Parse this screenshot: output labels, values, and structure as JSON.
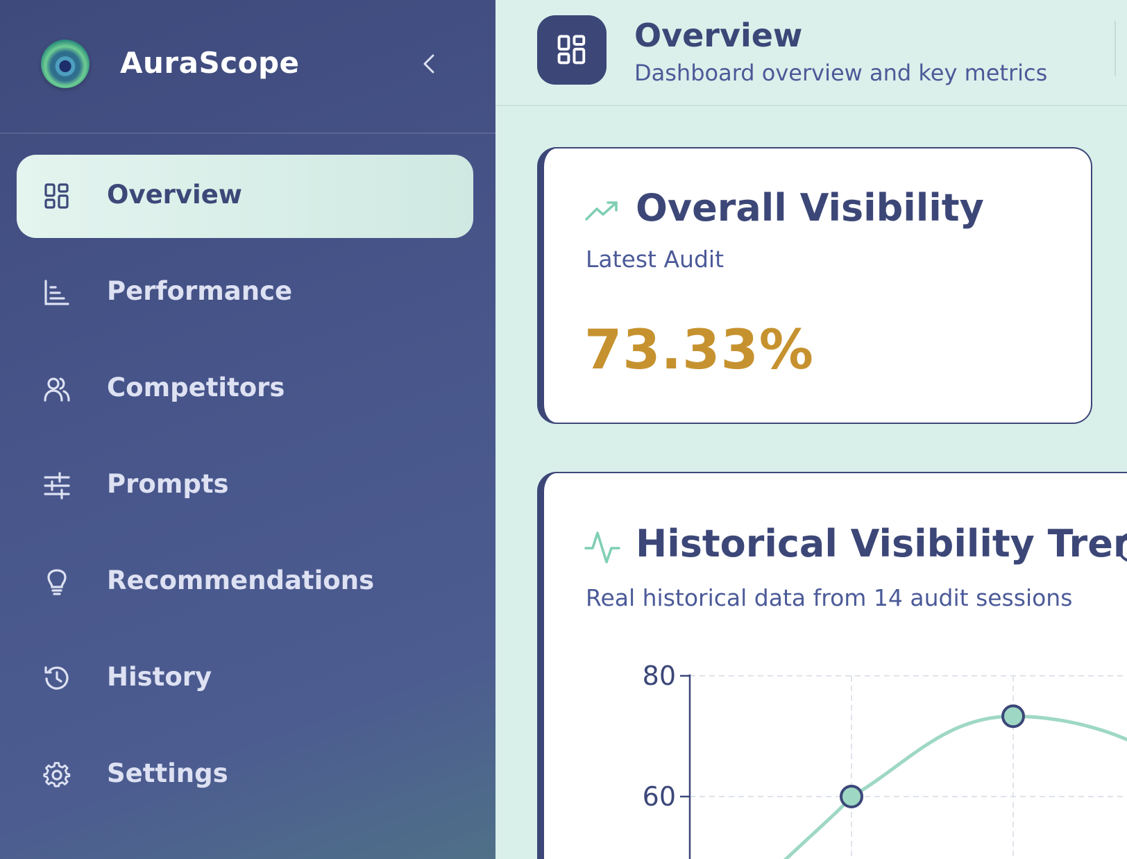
{
  "sidebar": {
    "brand": "AuraScope",
    "items": [
      {
        "label": "Overview",
        "icon": "grid-icon",
        "active": true
      },
      {
        "label": "Performance",
        "icon": "bar-chart-icon",
        "active": false
      },
      {
        "label": "Competitors",
        "icon": "users-icon",
        "active": false
      },
      {
        "label": "Prompts",
        "icon": "sliders-icon",
        "active": false
      },
      {
        "label": "Recommendations",
        "icon": "lightbulb-icon",
        "active": false
      },
      {
        "label": "History",
        "icon": "history-icon",
        "active": false
      },
      {
        "label": "Settings",
        "icon": "gear-icon",
        "active": false
      }
    ]
  },
  "header": {
    "title": "Overview",
    "subtitle": "Dashboard overview and key metrics"
  },
  "visibility_card": {
    "title": "Overall Visibility",
    "subtitle": "Latest Audit",
    "value": "73.33%"
  },
  "trend_card": {
    "title": "Historical Visibility Trend",
    "subtitle": "Real historical data from 14 audit sessions"
  },
  "colors": {
    "sidebar": "#45518a",
    "accent": "#3c4778",
    "metric": "#c6922f",
    "line": "#9ed8c4"
  },
  "chart_data": {
    "type": "line",
    "y_ticks": [
      "80",
      "60"
    ],
    "points": [
      {
        "x": 1,
        "y": 60
      },
      {
        "x": 2,
        "y": 73.3
      }
    ],
    "grid": true
  }
}
